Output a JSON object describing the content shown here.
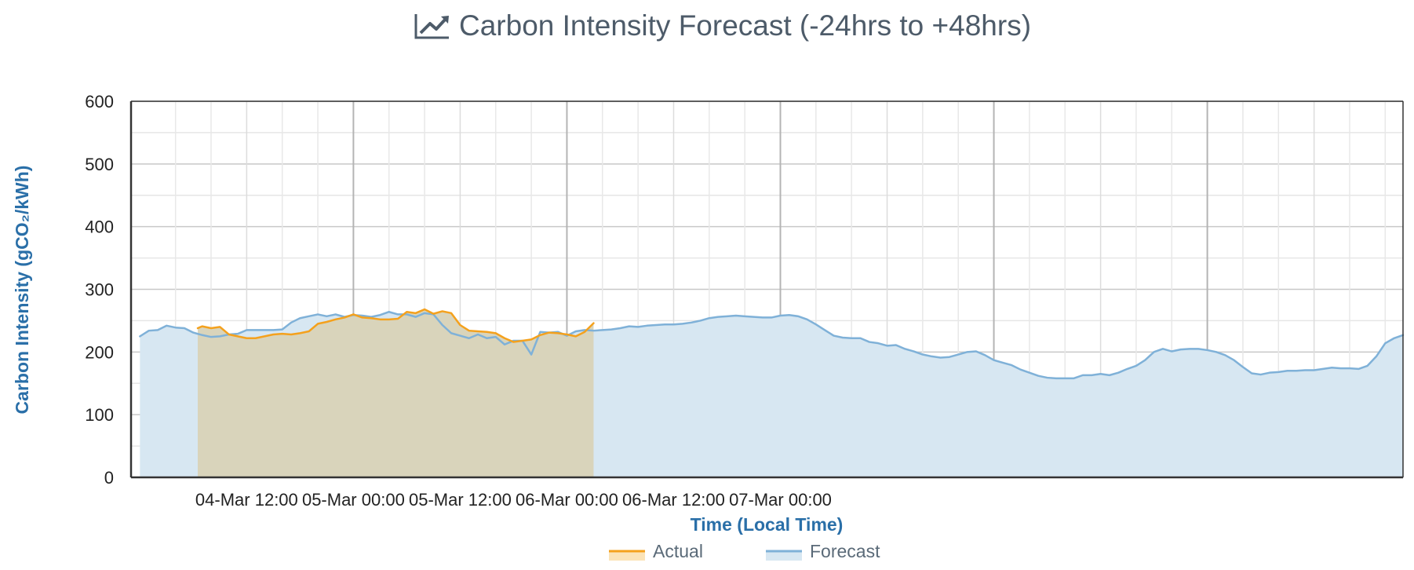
{
  "chart_data": {
    "type": "line",
    "title": "Carbon Intensity Forecast (-24hrs to +48hrs)",
    "title_icon": "line-chart-trend-icon",
    "xlabel": "Time (Local Time)",
    "ylabel": "Carbon Intensity (gCO₂/kWh)",
    "ylim": [
      0,
      600
    ],
    "y_ticks": [
      0,
      100,
      200,
      300,
      400,
      500,
      600
    ],
    "xlim": [
      "04-Mar 06:30",
      "07-Mar 06:00"
    ],
    "x_ticks": [
      "04-Mar 12:00",
      "05-Mar 00:00",
      "05-Mar 12:00",
      "06-Mar 00:00",
      "06-Mar 12:00",
      "07-Mar 00:00"
    ],
    "x_unit": "hours from 04-Mar 00:00",
    "grid": true,
    "legend_position": "bottom-center",
    "series": [
      {
        "name": "Actual",
        "color": "#f4a11d",
        "fill": "#d9d4bb",
        "values": [
          [
            6.5,
            238
          ],
          [
            7,
            241
          ],
          [
            8,
            238
          ],
          [
            9,
            240
          ],
          [
            10,
            228
          ],
          [
            11,
            225
          ],
          [
            12,
            222
          ],
          [
            13,
            222
          ],
          [
            14,
            225
          ],
          [
            15,
            228
          ],
          [
            16,
            229
          ],
          [
            17,
            228
          ],
          [
            18,
            230
          ],
          [
            19,
            233
          ],
          [
            20,
            245
          ],
          [
            21,
            248
          ],
          [
            22,
            252
          ],
          [
            23,
            255
          ],
          [
            24,
            260
          ],
          [
            25,
            255
          ],
          [
            26,
            254
          ],
          [
            27,
            252
          ],
          [
            28,
            252
          ],
          [
            29,
            253
          ],
          [
            30,
            264
          ],
          [
            31,
            262
          ],
          [
            32,
            268
          ],
          [
            33,
            261
          ],
          [
            34,
            265
          ],
          [
            35,
            262
          ],
          [
            36,
            243
          ],
          [
            37,
            234
          ],
          [
            38,
            233
          ],
          [
            39,
            232
          ],
          [
            40,
            230
          ],
          [
            41,
            222
          ],
          [
            42,
            216
          ],
          [
            43,
            218
          ],
          [
            44,
            220
          ],
          [
            45,
            227
          ],
          [
            46,
            231
          ],
          [
            47,
            230
          ],
          [
            48,
            228
          ],
          [
            49,
            225
          ],
          [
            50,
            232
          ],
          [
            51,
            246
          ]
        ]
      },
      {
        "name": "Forecast",
        "color": "#7fb1d8",
        "fill": "#d7e7f2",
        "values": [
          [
            0,
            225
          ],
          [
            1,
            234
          ],
          [
            2,
            235
          ],
          [
            3,
            242
          ],
          [
            4,
            239
          ],
          [
            5,
            238
          ],
          [
            6,
            231
          ],
          [
            7,
            227
          ],
          [
            8,
            224
          ],
          [
            9,
            225
          ],
          [
            10,
            228
          ],
          [
            11,
            229
          ],
          [
            12,
            235
          ],
          [
            13,
            235
          ],
          [
            14,
            235
          ],
          [
            15,
            235
          ],
          [
            16,
            236
          ],
          [
            17,
            247
          ],
          [
            18,
            254
          ],
          [
            19,
            257
          ],
          [
            20,
            260
          ],
          [
            21,
            257
          ],
          [
            22,
            260
          ],
          [
            23,
            256
          ],
          [
            24,
            259
          ],
          [
            25,
            258
          ],
          [
            26,
            256
          ],
          [
            27,
            259
          ],
          [
            28,
            264
          ],
          [
            29,
            260
          ],
          [
            30,
            260
          ],
          [
            31,
            256
          ],
          [
            32,
            262
          ],
          [
            33,
            260
          ],
          [
            34,
            243
          ],
          [
            35,
            230
          ],
          [
            36,
            226
          ],
          [
            37,
            222
          ],
          [
            38,
            228
          ],
          [
            39,
            222
          ],
          [
            40,
            224
          ],
          [
            41,
            212
          ],
          [
            42,
            218
          ],
          [
            43,
            218
          ],
          [
            44,
            196
          ],
          [
            45,
            232
          ],
          [
            46,
            231
          ],
          [
            47,
            232
          ],
          [
            48,
            226
          ],
          [
            49,
            233
          ],
          [
            50,
            235
          ],
          [
            51,
            234
          ],
          [
            52,
            235
          ],
          [
            53,
            236
          ],
          [
            54,
            238
          ],
          [
            55,
            241
          ],
          [
            56,
            240
          ],
          [
            57,
            242
          ],
          [
            58,
            243
          ],
          [
            59,
            244
          ],
          [
            60,
            244
          ],
          [
            61,
            245
          ],
          [
            62,
            247
          ],
          [
            63,
            250
          ],
          [
            64,
            254
          ],
          [
            65,
            256
          ],
          [
            66,
            257
          ],
          [
            67,
            258
          ],
          [
            68,
            257
          ],
          [
            69,
            256
          ],
          [
            70,
            255
          ],
          [
            71,
            255
          ],
          [
            72,
            258
          ],
          [
            73,
            259
          ],
          [
            74,
            257
          ],
          [
            75,
            252
          ],
          [
            76,
            244
          ],
          [
            77,
            235
          ],
          [
            78,
            226
          ],
          [
            79,
            223
          ],
          [
            80,
            222
          ],
          [
            81,
            222
          ],
          [
            82,
            216
          ],
          [
            83,
            214
          ],
          [
            84,
            210
          ],
          [
            85,
            211
          ],
          [
            86,
            205
          ],
          [
            87,
            201
          ],
          [
            88,
            196
          ],
          [
            89,
            193
          ],
          [
            90,
            191
          ],
          [
            91,
            192
          ],
          [
            92,
            196
          ],
          [
            93,
            200
          ],
          [
            94,
            201
          ],
          [
            95,
            195
          ],
          [
            96,
            187
          ],
          [
            97,
            183
          ],
          [
            98,
            179
          ],
          [
            99,
            172
          ],
          [
            100,
            167
          ],
          [
            101,
            162
          ],
          [
            102,
            159
          ],
          [
            103,
            158
          ],
          [
            104,
            158
          ],
          [
            105,
            158
          ],
          [
            106,
            163
          ],
          [
            107,
            163
          ],
          [
            108,
            165
          ],
          [
            109,
            163
          ],
          [
            110,
            167
          ],
          [
            111,
            173
          ],
          [
            112,
            178
          ],
          [
            113,
            187
          ],
          [
            114,
            200
          ],
          [
            115,
            205
          ],
          [
            116,
            201
          ],
          [
            117,
            204
          ],
          [
            118,
            205
          ],
          [
            119,
            205
          ],
          [
            120,
            203
          ],
          [
            121,
            200
          ],
          [
            122,
            195
          ],
          [
            123,
            187
          ],
          [
            124,
            176
          ],
          [
            125,
            166
          ],
          [
            126,
            164
          ],
          [
            127,
            167
          ],
          [
            128,
            168
          ],
          [
            129,
            170
          ],
          [
            130,
            170
          ],
          [
            131,
            171
          ],
          [
            132,
            171
          ],
          [
            133,
            173
          ],
          [
            134,
            175
          ],
          [
            135,
            174
          ],
          [
            136,
            174
          ],
          [
            137,
            173
          ],
          [
            138,
            178
          ],
          [
            139,
            193
          ],
          [
            140,
            214
          ],
          [
            141,
            222
          ],
          [
            142,
            227
          ]
        ]
      }
    ]
  }
}
